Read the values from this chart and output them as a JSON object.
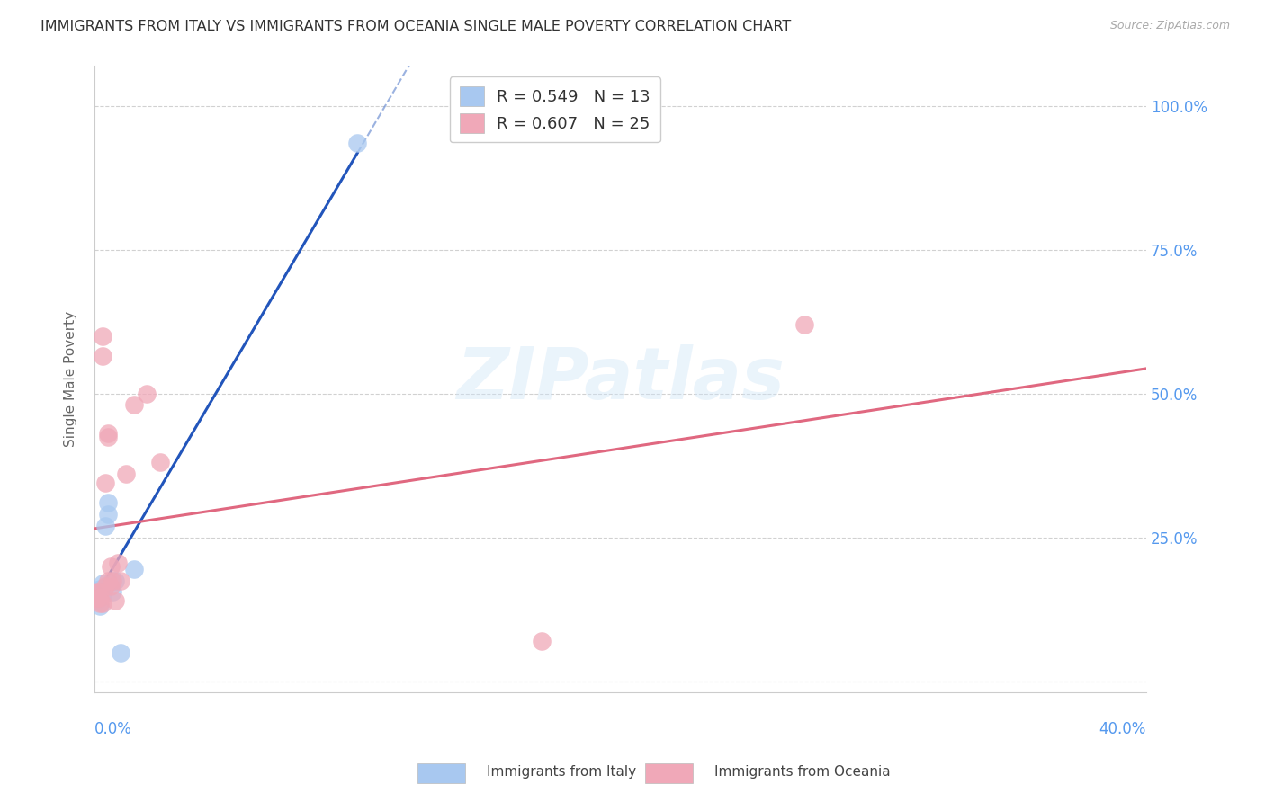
{
  "title": "IMMIGRANTS FROM ITALY VS IMMIGRANTS FROM OCEANIA SINGLE MALE POVERTY CORRELATION CHART",
  "source": "Source: ZipAtlas.com",
  "ylabel": "Single Male Poverty",
  "yticks": [
    0.0,
    0.25,
    0.5,
    0.75,
    1.0
  ],
  "ytick_labels": [
    "",
    "25.0%",
    "50.0%",
    "75.0%",
    "100.0%"
  ],
  "xlim": [
    0.0,
    0.4
  ],
  "ylim": [
    -0.02,
    1.07
  ],
  "legend_italy": "Immigrants from Italy",
  "legend_oceania": "Immigrants from Oceania",
  "R_italy": 0.549,
  "N_italy": 13,
  "R_oceania": 0.607,
  "N_oceania": 25,
  "italy_color": "#a8c8f0",
  "oceania_color": "#f0a8b8",
  "italy_line_color": "#2255bb",
  "oceania_line_color": "#e06880",
  "italy_x": [
    0.001,
    0.002,
    0.002,
    0.003,
    0.003,
    0.004,
    0.005,
    0.005,
    0.007,
    0.008,
    0.01,
    0.015,
    0.1
  ],
  "italy_y": [
    0.14,
    0.13,
    0.16,
    0.15,
    0.17,
    0.27,
    0.29,
    0.31,
    0.155,
    0.175,
    0.05,
    0.195,
    0.935
  ],
  "oceania_x": [
    0.001,
    0.001,
    0.002,
    0.002,
    0.002,
    0.003,
    0.003,
    0.003,
    0.004,
    0.004,
    0.005,
    0.005,
    0.005,
    0.006,
    0.006,
    0.007,
    0.008,
    0.009,
    0.01,
    0.012,
    0.015,
    0.02,
    0.025,
    0.17,
    0.27
  ],
  "oceania_y": [
    0.145,
    0.155,
    0.135,
    0.145,
    0.155,
    0.135,
    0.6,
    0.565,
    0.345,
    0.165,
    0.425,
    0.43,
    0.175,
    0.165,
    0.2,
    0.175,
    0.14,
    0.205,
    0.175,
    0.36,
    0.48,
    0.5,
    0.38,
    0.07,
    0.62
  ],
  "watermark": "ZIPatlas",
  "background_color": "#ffffff",
  "grid_color": "#cccccc",
  "title_color": "#333333",
  "axis_label_color": "#666666",
  "right_axis_color": "#5599ee",
  "title_fontsize": 11.5,
  "source_fontsize": 9,
  "legend_fontsize": 13
}
